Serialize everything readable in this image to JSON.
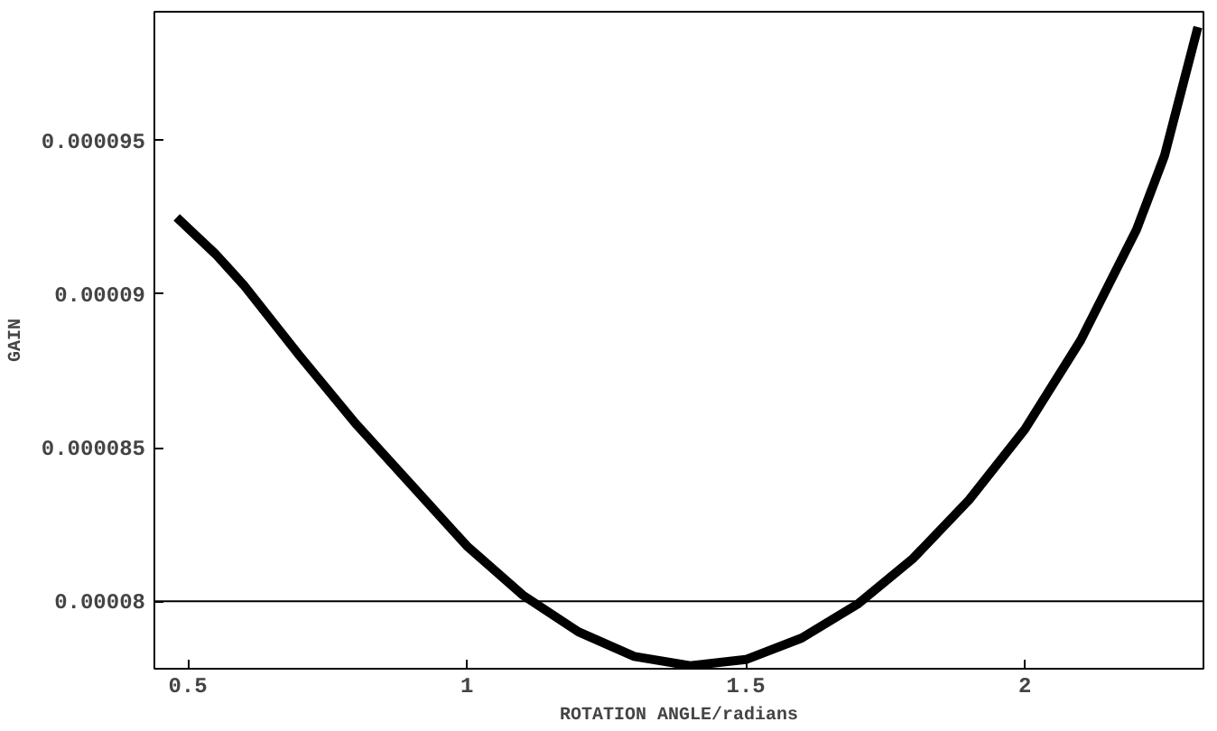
{
  "chart_data": {
    "type": "line",
    "xlabel": "ROTATION ANGLE/radians",
    "ylabel": "GAIN",
    "x": [
      0.48,
      0.55,
      0.6,
      0.7,
      0.8,
      0.9,
      1.0,
      1.1,
      1.2,
      1.3,
      1.4,
      1.5,
      1.6,
      1.7,
      1.8,
      1.9,
      2.0,
      2.1,
      2.2,
      2.25,
      2.31
    ],
    "series": [
      {
        "color": "#000000",
        "values": [
          9.25e-05,
          9.13e-05,
          9.03e-05,
          8.8e-05,
          8.58e-05,
          8.38e-05,
          8.18e-05,
          8.02e-05,
          7.9e-05,
          7.82e-05,
          7.79e-05,
          7.81e-05,
          7.88e-05,
          7.99e-05,
          8.14e-05,
          8.33e-05,
          8.56e-05,
          8.85e-05,
          9.21e-05,
          9.45e-05,
          9.87e-05
        ]
      }
    ],
    "xlim": [
      0.44,
      2.32
    ],
    "ylim": [
      7.78e-05,
      9.92e-05
    ],
    "xticks": [
      0.5,
      1,
      1.5,
      2
    ],
    "yticks": [
      {
        "value": 8e-05,
        "label": "0.00008"
      },
      {
        "value": 8.5e-05,
        "label": "0.000085"
      },
      {
        "value": 9e-05,
        "label": "0.00009"
      },
      {
        "value": 9.5e-05,
        "label": "0.000095"
      }
    ],
    "ref_lines": [
      {
        "axis": "y",
        "value": 8e-05,
        "color": "#000000"
      }
    ],
    "grid": false,
    "marker": "none",
    "line_style": "solid"
  }
}
